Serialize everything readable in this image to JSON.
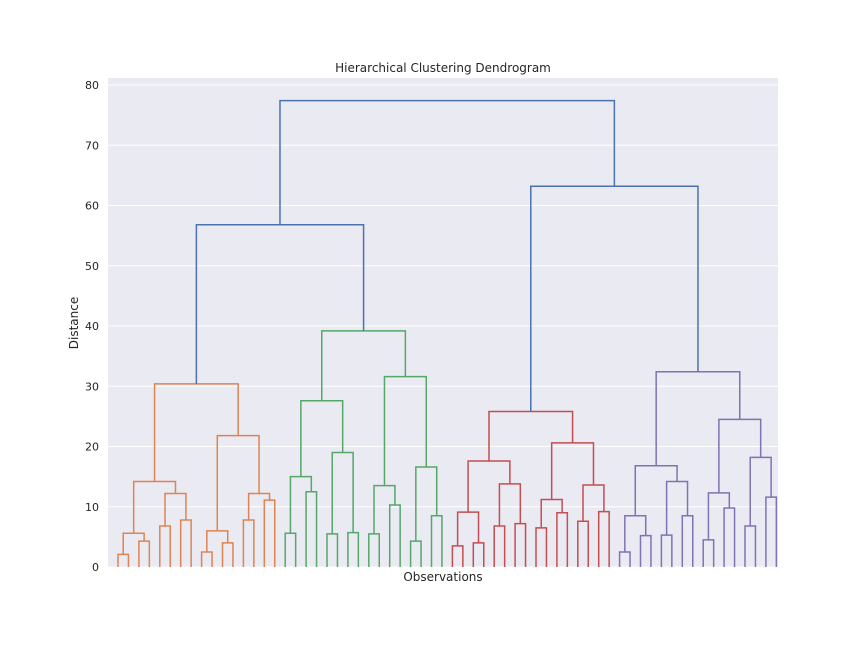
{
  "chart_data": {
    "type": "dendrogram",
    "title": "Hierarchical Clustering Dendrogram",
    "xlabel": "Observations",
    "ylabel": "Distance",
    "ylim": [
      0,
      80
    ],
    "yticks": [
      0,
      10,
      20,
      30,
      40,
      50,
      60,
      70,
      80
    ],
    "grid": true,
    "background": "#eaeaf2",
    "colors": {
      "C0": "#4c72b0",
      "C1": "#dd8452",
      "C2": "#55a868",
      "C3": "#c44e52",
      "C4": "#8172b3"
    },
    "n_leaves": 64,
    "links": [
      {
        "cluster": "C1",
        "x1": 0.5,
        "x2": 1.5,
        "h": 2.1
      },
      {
        "cluster": "C1",
        "x1": 1.0,
        "x2": 2.5,
        "h": 5.6
      },
      {
        "cluster": "C1",
        "x1": 4.0,
        "x2": 5.0,
        "h": 12.2
      },
      {
        "cluster": "C1",
        "x1": 1.75,
        "x2": 4.5,
        "h": 14.2
      },
      {
        "cluster": "C1",
        "x1": 8.5,
        "x2": 9.5,
        "h": 6.0
      },
      {
        "cluster": "C1",
        "x1": 11.5,
        "x2": 12.5,
        "h": 12.2
      },
      {
        "cluster": "C1",
        "x1": 9.0,
        "x2": 12.0,
        "h": 21.8
      },
      {
        "cluster": "C1",
        "x1": 3.125,
        "x2": 10.5,
        "h": 30.4
      },
      {
        "cluster": "C2",
        "x1": 14.0,
        "x2": 15.0,
        "h": 15.0
      },
      {
        "cluster": "C2",
        "x1": 17.5,
        "x2": 18.5,
        "h": 19.0
      },
      {
        "cluster": "C2",
        "x1": 14.5,
        "x2": 18.0,
        "h": 27.6
      },
      {
        "cluster": "C2",
        "x1": 20.5,
        "x2": 21.5,
        "h": 13.5
      },
      {
        "cluster": "C2",
        "x1": 23.5,
        "x2": 24.5,
        "h": 16.6
      },
      {
        "cluster": "C2",
        "x1": 21.0,
        "x2": 24.0,
        "h": 31.6
      },
      {
        "cluster": "C2",
        "x1": 16.25,
        "x2": 22.5,
        "h": 39.2
      },
      {
        "cluster": "C0",
        "x1": 6.8125,
        "x2": 19.375,
        "h": 56.8
      },
      {
        "cluster": "C3",
        "x1": 26.5,
        "x2": 27.5,
        "h": 3.5
      },
      {
        "cluster": "C3",
        "x1": 27.0,
        "x2": 28.5,
        "h": 9.1
      },
      {
        "cluster": "C3",
        "x1": 29.5,
        "x2": 30.5,
        "h": 7.1
      },
      {
        "cluster": "C3",
        "x1": 30.0,
        "x2": 31.5,
        "h": 13.8
      },
      {
        "cluster": "C3",
        "x1": 27.75,
        "x2": 30.75,
        "h": 17.6
      },
      {
        "cluster": "C3",
        "x1": 32.5,
        "x2": 33.5,
        "h": 11.2
      },
      {
        "cluster": "C3",
        "x1": 34.5,
        "x2": 35.5,
        "h": 13.6
      },
      {
        "cluster": "C3",
        "x1": 33.0,
        "x2": 35.0,
        "h": 20.6
      },
      {
        "cluster": "C3",
        "x1": 29.25,
        "x2": 34.0,
        "h": 25.8
      },
      {
        "cluster": "C4",
        "x1": 37.5,
        "x2": 38.5,
        "h": 8.5
      },
      {
        "cluster": "C4",
        "x1": 39.5,
        "x2": 40.5,
        "h": 14.2
      },
      {
        "cluster": "C4",
        "x1": 38.0,
        "x2": 40.0,
        "h": 16.8
      },
      {
        "cluster": "C4",
        "x1": 41.5,
        "x2": 42.5,
        "h": 12.3
      },
      {
        "cluster": "C4",
        "x1": 43.5,
        "x2": 44.5,
        "h": 18.2
      },
      {
        "cluster": "C4",
        "x1": 42.0,
        "x2": 44.0,
        "h": 24.5
      },
      {
        "cluster": "C4",
        "x1": 39.0,
        "x2": 43.0,
        "h": 32.4
      },
      {
        "cluster": "C0",
        "x1": 31.625,
        "x2": 41.0,
        "h": 63.2
      },
      {
        "cluster": "C0",
        "x1": 13.09375,
        "x2": 36.3125,
        "h": 77.4
      }
    ],
    "leaf_pairs": [
      {
        "cluster": "C1",
        "x1": 0,
        "x2": 1,
        "h": 2.1
      },
      {
        "cluster": "C1",
        "x1": 2,
        "x2": 3,
        "h": 4.3
      },
      {
        "cluster": "C1",
        "x1": 4,
        "x2": 5,
        "h": 6.8
      },
      {
        "cluster": "C1",
        "x1": 6,
        "x2": 7,
        "h": 7.8
      },
      {
        "cluster": "C1",
        "x1": 8,
        "x2": 9,
        "h": 2.5
      },
      {
        "cluster": "C1",
        "x1": 10,
        "x2": 11,
        "h": 4.0
      },
      {
        "cluster": "C1",
        "x1": 12,
        "x2": 13,
        "h": 7.8
      },
      {
        "cluster": "C1",
        "x1": 14,
        "x2": 15,
        "h": 11.1
      },
      {
        "cluster": "C2",
        "x1": 16,
        "x2": 17,
        "h": 5.6
      },
      {
        "cluster": "C2",
        "x1": 18,
        "x2": 19,
        "h": 12.5
      },
      {
        "cluster": "C2",
        "x1": 20,
        "x2": 21,
        "h": 5.5
      },
      {
        "cluster": "C2",
        "x1": 22,
        "x2": 23,
        "h": 5.7
      },
      {
        "cluster": "C2",
        "x1": 24,
        "x2": 25,
        "h": 5.5
      },
      {
        "cluster": "C2",
        "x1": 26,
        "x2": 27,
        "h": 10.3
      },
      {
        "cluster": "C2",
        "x1": 28,
        "x2": 29,
        "h": 4.3
      },
      {
        "cluster": "C2",
        "x1": 30,
        "x2": 31,
        "h": 8.5
      },
      {
        "cluster": "C3",
        "x1": 32,
        "x2": 33,
        "h": 3.5
      },
      {
        "cluster": "C3",
        "x1": 34,
        "x2": 35,
        "h": 4.0
      },
      {
        "cluster": "C3",
        "x1": 36,
        "x2": 37,
        "h": 6.8
      },
      {
        "cluster": "C3",
        "x1": 38,
        "x2": 39,
        "h": 7.2
      },
      {
        "cluster": "C3",
        "x1": 40,
        "x2": 41,
        "h": 6.5
      },
      {
        "cluster": "C3",
        "x1": 42,
        "x2": 43,
        "h": 9.0
      },
      {
        "cluster": "C3",
        "x1": 44,
        "x2": 45,
        "h": 7.6
      },
      {
        "cluster": "C3",
        "x1": 46,
        "x2": 47,
        "h": 9.2
      },
      {
        "cluster": "C4",
        "x1": 48,
        "x2": 49,
        "h": 2.5
      },
      {
        "cluster": "C4",
        "x1": 50,
        "x2": 51,
        "h": 5.2
      },
      {
        "cluster": "C4",
        "x1": 52,
        "x2": 53,
        "h": 5.3
      },
      {
        "cluster": "C4",
        "x1": 54,
        "x2": 55,
        "h": 8.5
      },
      {
        "cluster": "C4",
        "x1": 56,
        "x2": 57,
        "h": 4.5
      },
      {
        "cluster": "C4",
        "x1": 58,
        "x2": 59,
        "h": 9.8
      },
      {
        "cluster": "C4",
        "x1": 60,
        "x2": 61,
        "h": 6.8
      },
      {
        "cluster": "C4",
        "x1": 62,
        "x2": 63,
        "h": 11.6
      }
    ],
    "subtrees": [
      {
        "cluster": "C1",
        "pairs": [
          0,
          1
        ],
        "h": 5.6
      },
      {
        "cluster": "C1",
        "pairs": [
          2,
          3
        ],
        "h": 12.2
      },
      {
        "cluster": "C1",
        "subs": [
          0,
          1
        ],
        "h": 14.2
      },
      {
        "cluster": "C1",
        "pairs": [
          4,
          5
        ],
        "h": 6.0
      },
      {
        "cluster": "C1",
        "pairs": [
          6,
          7
        ],
        "h": 12.2
      },
      {
        "cluster": "C1",
        "subs": [
          3,
          4
        ],
        "h": 21.8
      },
      {
        "cluster": "C1",
        "subs": [
          2,
          5
        ],
        "h": 30.4
      },
      {
        "cluster": "C2",
        "pairs": [
          8,
          9
        ],
        "h": 15.0
      },
      {
        "cluster": "C2",
        "pairs": [
          10,
          11
        ],
        "h": 19.0
      },
      {
        "cluster": "C2",
        "subs": [
          7,
          8
        ],
        "h": 27.6
      },
      {
        "cluster": "C2",
        "pairs": [
          12,
          13
        ],
        "h": 13.5
      },
      {
        "cluster": "C2",
        "pairs": [
          14,
          15
        ],
        "h": 16.6
      },
      {
        "cluster": "C2",
        "subs": [
          10,
          11
        ],
        "h": 31.6
      },
      {
        "cluster": "C2",
        "subs": [
          9,
          12
        ],
        "h": 39.2
      },
      {
        "cluster": "C0",
        "subs": [
          6,
          13
        ],
        "h": 56.8
      },
      {
        "cluster": "C3",
        "pairs": [
          16,
          17
        ],
        "h": 9.1
      },
      {
        "cluster": "C3",
        "pairs": [
          18,
          19
        ],
        "h": 13.8
      },
      {
        "cluster": "C3",
        "subs": [
          15,
          16
        ],
        "h": 17.6
      },
      {
        "cluster": "C3",
        "pairs": [
          20,
          21
        ],
        "h": 11.2
      },
      {
        "cluster": "C3",
        "pairs": [
          22,
          23
        ],
        "h": 13.6
      },
      {
        "cluster": "C3",
        "subs": [
          18,
          19
        ],
        "h": 20.6
      },
      {
        "cluster": "C3",
        "subs": [
          17,
          20
        ],
        "h": 25.8
      },
      {
        "cluster": "C4",
        "pairs": [
          24,
          25
        ],
        "h": 8.5
      },
      {
        "cluster": "C4",
        "pairs": [
          26,
          27
        ],
        "h": 14.2
      },
      {
        "cluster": "C4",
        "subs": [
          22,
          23
        ],
        "h": 16.8
      },
      {
        "cluster": "C4",
        "pairs": [
          28,
          29
        ],
        "h": 12.3
      },
      {
        "cluster": "C4",
        "pairs": [
          30,
          31
        ],
        "h": 18.2
      },
      {
        "cluster": "C4",
        "subs": [
          25,
          26
        ],
        "h": 24.5
      },
      {
        "cluster": "C4",
        "subs": [
          24,
          27
        ],
        "h": 32.4
      },
      {
        "cluster": "C0",
        "subs": [
          21,
          28
        ],
        "h": 63.2
      },
      {
        "cluster": "C0",
        "subs": [
          14,
          29
        ],
        "h": 77.4
      }
    ]
  }
}
